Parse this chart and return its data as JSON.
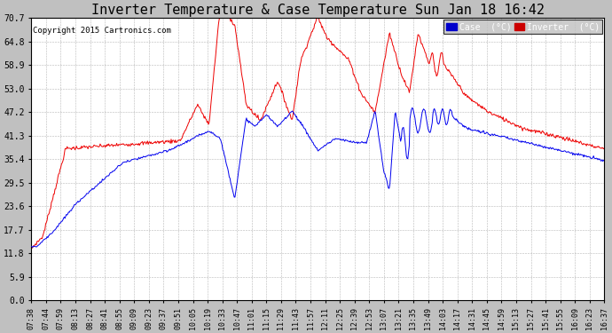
{
  "title": "Inverter Temperature & Case Temperature Sun Jan 18 16:42",
  "copyright": "Copyright 2015 Cartronics.com",
  "legend_labels": [
    "Case  (°C)",
    "Inverter  (°C)"
  ],
  "legend_bg_colors": [
    "#0000cc",
    "#cc0000"
  ],
  "yticks": [
    0.0,
    5.9,
    11.8,
    17.7,
    23.6,
    29.5,
    35.4,
    41.3,
    47.2,
    53.0,
    58.9,
    64.8,
    70.7
  ],
  "ylim": [
    0.0,
    70.7
  ],
  "bg_color": "#c0c0c0",
  "plot_bg": "#ffffff",
  "grid_color": "#999999",
  "title_fontsize": 11,
  "case_color": "#0000ee",
  "inverter_color": "#ee0000",
  "xtick_labels": [
    "07:38",
    "07:44",
    "07:59",
    "08:13",
    "08:27",
    "08:41",
    "08:55",
    "09:09",
    "09:23",
    "09:37",
    "09:51",
    "10:05",
    "10:19",
    "10:33",
    "10:47",
    "11:01",
    "11:15",
    "11:29",
    "11:43",
    "11:57",
    "12:11",
    "12:25",
    "12:39",
    "12:53",
    "13:07",
    "13:21",
    "13:35",
    "13:49",
    "14:03",
    "14:17",
    "14:31",
    "14:45",
    "14:59",
    "15:13",
    "15:27",
    "15:41",
    "15:55",
    "16:09",
    "16:23",
    "16:37"
  ]
}
